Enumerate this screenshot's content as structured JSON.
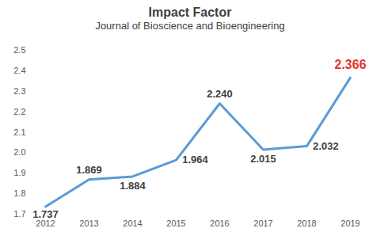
{
  "chart_data": {
    "type": "line",
    "title": "Impact Factor",
    "subtitle": "Journal of Bioscience and Bioengineering",
    "categories": [
      "2012",
      "2013",
      "2014",
      "2015",
      "2016",
      "2017",
      "2018",
      "2019"
    ],
    "values": [
      1.737,
      1.869,
      1.884,
      1.964,
      2.24,
      2.015,
      2.032,
      2.366
    ],
    "value_labels": [
      "1.737",
      "1.869",
      "1.884",
      "1.964",
      "2.240",
      "2.015",
      "2.032",
      "2.366"
    ],
    "color": "#5b9bd5",
    "ylim": [
      1.7,
      2.5
    ],
    "yticks": [
      1.7,
      1.8,
      1.9,
      {
        "value": 2,
        "label": "2.0"
      },
      2.1,
      2.2,
      2.3,
      2.4,
      2.5
    ],
    "grid": false,
    "data_labels": true
  }
}
